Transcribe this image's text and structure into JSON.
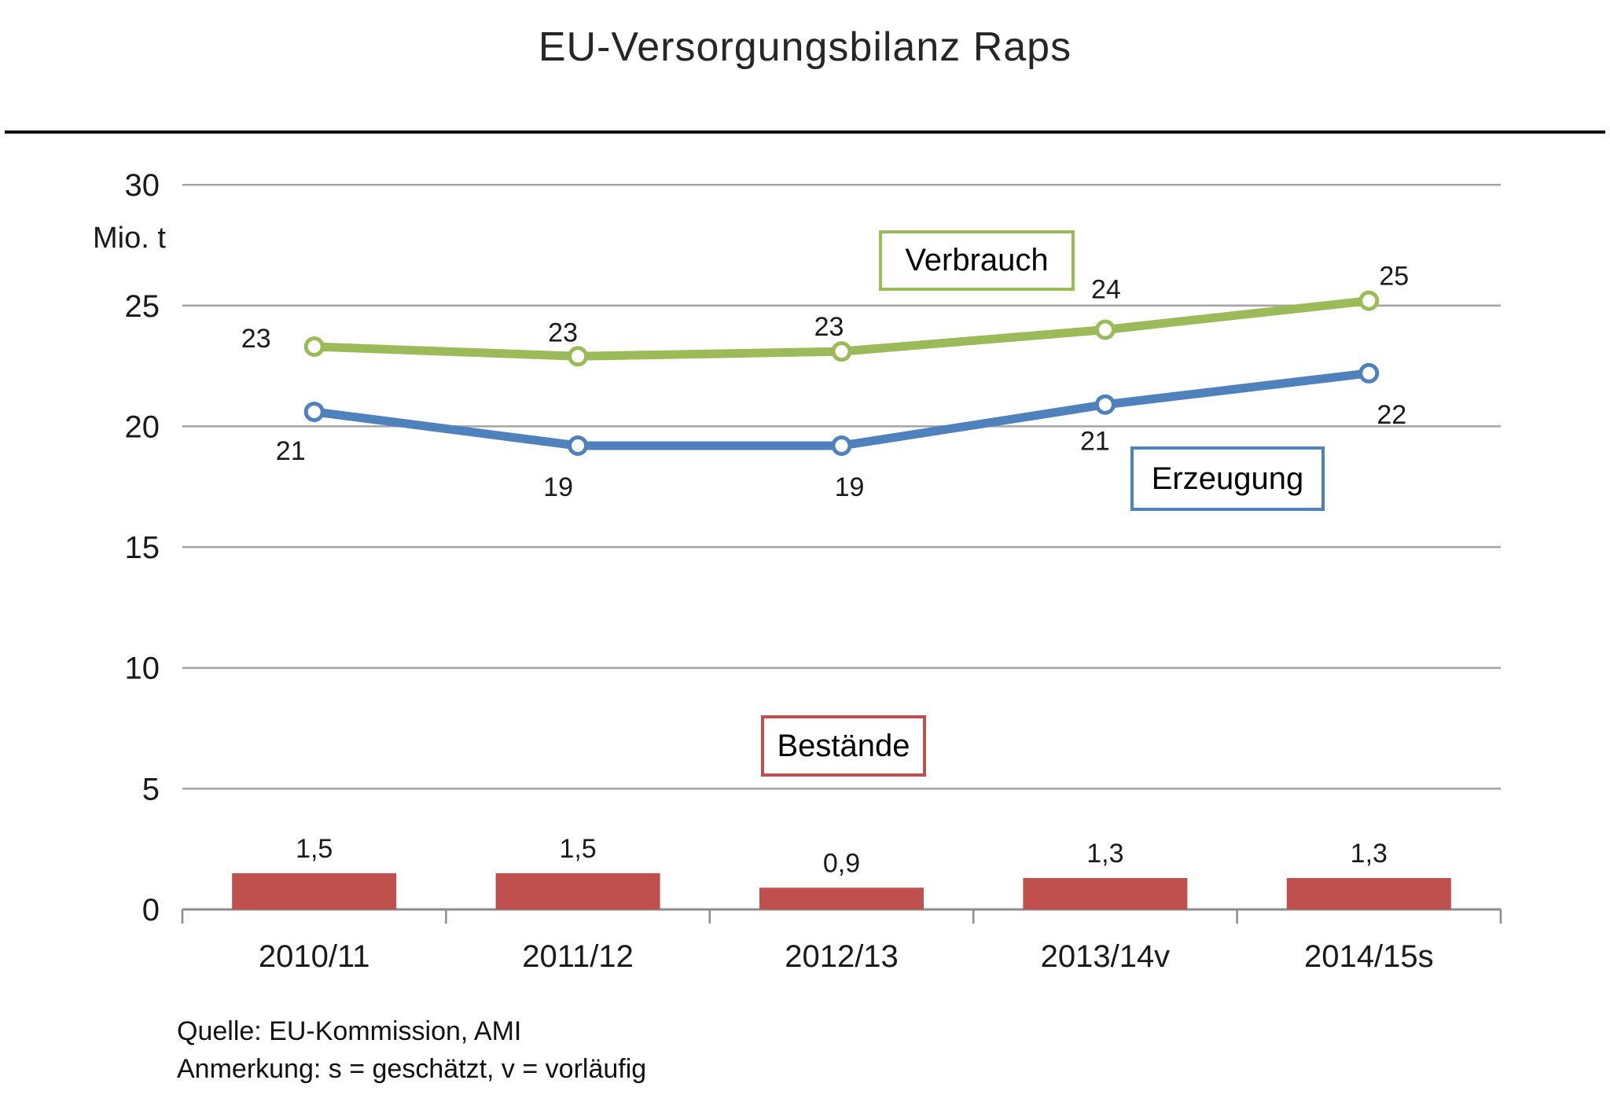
{
  "title": "EU-Versorgungsbilanz Raps",
  "source": {
    "line1": "Quelle: EU-Kommission, AMI",
    "line2": "Anmerkung: s = geschätzt, v = vorläufig"
  },
  "chart_data": {
    "type": "line+bar",
    "title": "EU-Versorgungsbilanz Raps",
    "categories": [
      "2010/11",
      "2011/12",
      "2012/13",
      "2013/14v",
      "2014/15s"
    ],
    "ylabel": "Mio. t",
    "ylim": [
      0,
      30
    ],
    "ytick_values": [
      30,
      25,
      20,
      15,
      10,
      5,
      0
    ],
    "grid": true,
    "colors": {
      "verbrauch": "#9BBB59",
      "erzeugung": "#4F81BD",
      "bestaende": "#C0504D",
      "gridline": "#A3A3A3",
      "axis": "#8C8C8C",
      "label_text": "#1a1a1a"
    },
    "series": [
      {
        "name": "Verbrauch",
        "type": "line",
        "color": "#9BBB59",
        "values": [
          23,
          23,
          23,
          24,
          25
        ],
        "plot_values": [
          23.3,
          22.9,
          23.1,
          24.0,
          25.2
        ],
        "labels": [
          "23",
          "23",
          "23",
          "24",
          "25"
        ],
        "label_offsets": [
          [
            -74,
            1
          ],
          [
            -19,
            -19
          ],
          [
            -16,
            -20
          ],
          [
            1,
            -40
          ],
          [
            32,
            -20
          ]
        ]
      },
      {
        "name": "Erzeugung",
        "type": "line",
        "color": "#4F81BD",
        "values": [
          21,
          19,
          19,
          21,
          22
        ],
        "plot_values": [
          20.6,
          19.2,
          19.2,
          20.9,
          22.2
        ],
        "labels": [
          "21",
          "19",
          "19",
          "21",
          "22"
        ],
        "label_offsets": [
          [
            -30,
            61
          ],
          [
            -25,
            64
          ],
          [
            10,
            64
          ],
          [
            -13,
            58
          ],
          [
            29,
            64
          ]
        ]
      },
      {
        "name": "Bestände",
        "type": "bar",
        "color": "#C0504D",
        "values": [
          1.5,
          1.5,
          0.9,
          1.3,
          1.3
        ],
        "labels": [
          "1,5",
          "1,5",
          "0,9",
          "1,3",
          "1,3"
        ]
      }
    ],
    "legend_position": "inside-plot-boxes"
  }
}
